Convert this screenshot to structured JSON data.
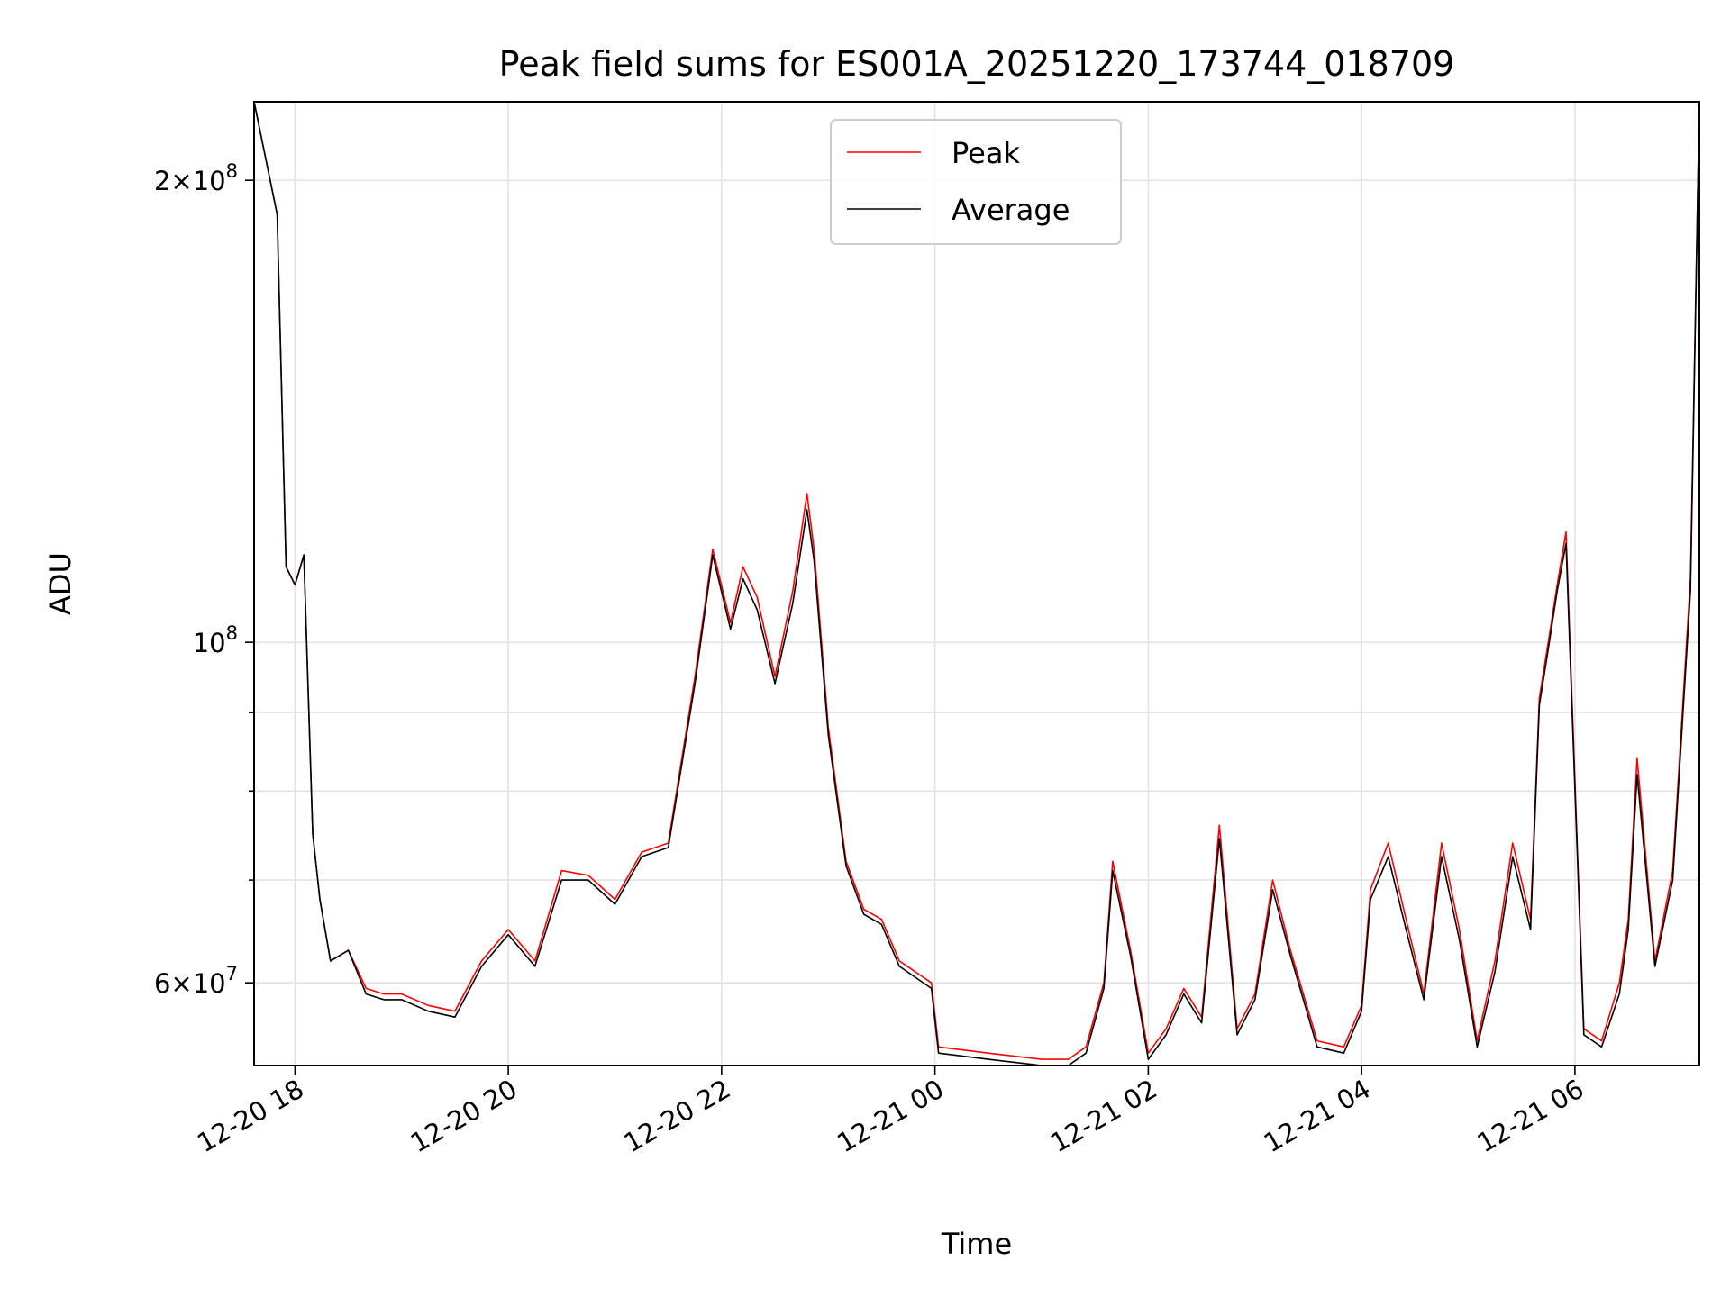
{
  "chart_data": {
    "type": "line",
    "title": "Peak field sums for ES001A_20251220_173744_018709",
    "xlabel": "Time",
    "ylabel": "ADU",
    "yscale": "log",
    "xlim": [
      "2025-12-20 17:37",
      "2025-12-21 07:10"
    ],
    "ylim": [
      53000000,
      225000000
    ],
    "grid": true,
    "legend_position": "top-center",
    "x_ticks": [
      {
        "value": "2025-12-20 18:00",
        "label": "12-20 18"
      },
      {
        "value": "2025-12-20 20:00",
        "label": "12-20 20"
      },
      {
        "value": "2025-12-20 22:00",
        "label": "12-20 22"
      },
      {
        "value": "2025-12-21 00:00",
        "label": "12-21 00"
      },
      {
        "value": "2025-12-21 02:00",
        "label": "12-21 02"
      },
      {
        "value": "2025-12-21 04:00",
        "label": "12-21 04"
      },
      {
        "value": "2025-12-21 06:00",
        "label": "12-21 06"
      }
    ],
    "y_major_ticks": [
      {
        "value": 60000000,
        "base": "6×10",
        "exp": "7"
      },
      {
        "value": 100000000,
        "base": "10",
        "exp": "8"
      },
      {
        "value": 200000000,
        "base": "2×10",
        "exp": "8"
      }
    ],
    "y_minor_ticks": [
      70000000,
      80000000,
      90000000
    ],
    "series": [
      {
        "name": "Peak",
        "color": "#ff0000",
        "x": [
          "2025-12-20 17:37",
          "2025-12-20 17:50",
          "2025-12-20 17:55",
          "2025-12-20 18:00",
          "2025-12-20 18:05",
          "2025-12-20 18:10",
          "2025-12-20 18:14",
          "2025-12-20 18:20",
          "2025-12-20 18:30",
          "2025-12-20 18:40",
          "2025-12-20 18:50",
          "2025-12-20 19:00",
          "2025-12-20 19:15",
          "2025-12-20 19:30",
          "2025-12-20 19:45",
          "2025-12-20 20:00",
          "2025-12-20 20:15",
          "2025-12-20 20:30",
          "2025-12-20 20:45",
          "2025-12-20 21:00",
          "2025-12-20 21:15",
          "2025-12-20 21:30",
          "2025-12-20 21:45",
          "2025-12-20 21:55",
          "2025-12-20 22:05",
          "2025-12-20 22:12",
          "2025-12-20 22:20",
          "2025-12-20 22:30",
          "2025-12-20 22:40",
          "2025-12-20 22:48",
          "2025-12-20 22:52",
          "2025-12-20 23:00",
          "2025-12-20 23:10",
          "2025-12-20 23:20",
          "2025-12-20 23:30",
          "2025-12-20 23:40",
          "2025-12-20 23:58",
          "2025-12-21 00:02",
          "2025-12-21 00:30",
          "2025-12-21 01:00",
          "2025-12-21 01:15",
          "2025-12-21 01:25",
          "2025-12-21 01:35",
          "2025-12-21 01:40",
          "2025-12-21 01:50",
          "2025-12-21 02:00",
          "2025-12-21 02:10",
          "2025-12-21 02:20",
          "2025-12-21 02:30",
          "2025-12-21 02:40",
          "2025-12-21 02:50",
          "2025-12-21 03:00",
          "2025-12-21 03:10",
          "2025-12-21 03:20",
          "2025-12-21 03:35",
          "2025-12-21 03:50",
          "2025-12-21 04:00",
          "2025-12-21 04:05",
          "2025-12-21 04:15",
          "2025-12-21 04:25",
          "2025-12-21 04:35",
          "2025-12-21 04:45",
          "2025-12-21 04:55",
          "2025-12-21 05:05",
          "2025-12-21 05:15",
          "2025-12-21 05:25",
          "2025-12-21 05:35",
          "2025-12-21 05:40",
          "2025-12-21 05:45",
          "2025-12-21 05:50",
          "2025-12-21 05:55",
          "2025-12-21 06:05",
          "2025-12-21 06:15",
          "2025-12-21 06:25",
          "2025-12-21 06:30",
          "2025-12-21 06:35",
          "2025-12-21 06:45",
          "2025-12-21 06:55",
          "2025-12-21 07:05",
          "2025-12-21 07:10"
        ],
        "y": [
          225000000,
          190000000,
          112000000,
          109000000,
          114000000,
          75000000,
          68000000,
          62000000,
          63000000,
          59500000,
          59000000,
          59000000,
          58000000,
          57500000,
          62000000,
          65000000,
          62000000,
          71000000,
          70500000,
          68000000,
          73000000,
          74000000,
          95000000,
          115000000,
          103000000,
          112000000,
          107000000,
          95000000,
          108000000,
          125000000,
          115000000,
          88000000,
          72000000,
          67000000,
          66000000,
          62000000,
          60000000,
          54500000,
          54000000,
          53500000,
          53500000,
          54500000,
          60000000,
          72000000,
          63000000,
          54000000,
          56000000,
          59500000,
          57000000,
          76000000,
          56000000,
          59000000,
          70000000,
          63000000,
          55000000,
          54500000,
          58000000,
          69000000,
          74000000,
          66000000,
          59000000,
          74000000,
          65000000,
          55000000,
          62000000,
          74000000,
          66000000,
          92000000,
          100000000,
          109000000,
          118000000,
          56000000,
          55000000,
          60000000,
          66000000,
          84000000,
          62000000,
          71000000,
          110000000,
          225000000
        ]
      },
      {
        "name": "Average",
        "color": "#000000",
        "x": [
          "2025-12-20 17:37",
          "2025-12-20 17:50",
          "2025-12-20 17:55",
          "2025-12-20 18:00",
          "2025-12-20 18:05",
          "2025-12-20 18:10",
          "2025-12-20 18:14",
          "2025-12-20 18:20",
          "2025-12-20 18:30",
          "2025-12-20 18:40",
          "2025-12-20 18:50",
          "2025-12-20 19:00",
          "2025-12-20 19:15",
          "2025-12-20 19:30",
          "2025-12-20 19:45",
          "2025-12-20 20:00",
          "2025-12-20 20:15",
          "2025-12-20 20:30",
          "2025-12-20 20:45",
          "2025-12-20 21:00",
          "2025-12-20 21:15",
          "2025-12-20 21:30",
          "2025-12-20 21:45",
          "2025-12-20 21:55",
          "2025-12-20 22:05",
          "2025-12-20 22:12",
          "2025-12-20 22:20",
          "2025-12-20 22:30",
          "2025-12-20 22:40",
          "2025-12-20 22:48",
          "2025-12-20 22:52",
          "2025-12-20 23:00",
          "2025-12-20 23:10",
          "2025-12-20 23:20",
          "2025-12-20 23:30",
          "2025-12-20 23:40",
          "2025-12-20 23:58",
          "2025-12-21 00:02",
          "2025-12-21 00:30",
          "2025-12-21 01:00",
          "2025-12-21 01:15",
          "2025-12-21 01:25",
          "2025-12-21 01:35",
          "2025-12-21 01:40",
          "2025-12-21 01:50",
          "2025-12-21 02:00",
          "2025-12-21 02:10",
          "2025-12-21 02:20",
          "2025-12-21 02:30",
          "2025-12-21 02:40",
          "2025-12-21 02:50",
          "2025-12-21 03:00",
          "2025-12-21 03:10",
          "2025-12-21 03:20",
          "2025-12-21 03:35",
          "2025-12-21 03:50",
          "2025-12-21 04:00",
          "2025-12-21 04:05",
          "2025-12-21 04:15",
          "2025-12-21 04:25",
          "2025-12-21 04:35",
          "2025-12-21 04:45",
          "2025-12-21 04:55",
          "2025-12-21 05:05",
          "2025-12-21 05:15",
          "2025-12-21 05:25",
          "2025-12-21 05:35",
          "2025-12-21 05:40",
          "2025-12-21 05:45",
          "2025-12-21 05:50",
          "2025-12-21 05:55",
          "2025-12-21 06:05",
          "2025-12-21 06:15",
          "2025-12-21 06:25",
          "2025-12-21 06:30",
          "2025-12-21 06:35",
          "2025-12-21 06:45",
          "2025-12-21 06:55",
          "2025-12-21 07:05",
          "2025-12-21 07:10"
        ],
        "y": [
          225000000,
          190000000,
          112000000,
          109000000,
          114000000,
          75000000,
          68000000,
          62000000,
          63000000,
          59000000,
          58500000,
          58500000,
          57500000,
          57000000,
          61500000,
          64500000,
          61500000,
          70000000,
          70000000,
          67500000,
          72500000,
          73500000,
          94000000,
          114000000,
          102000000,
          110000000,
          105000000,
          94000000,
          106000000,
          122000000,
          113000000,
          87000000,
          71500000,
          66500000,
          65500000,
          61500000,
          59500000,
          54000000,
          53500000,
          53000000,
          53000000,
          54000000,
          59500000,
          71000000,
          62500000,
          53500000,
          55500000,
          59000000,
          56500000,
          74500000,
          55500000,
          58500000,
          69000000,
          62500000,
          54500000,
          54000000,
          57500000,
          68000000,
          72500000,
          65000000,
          58500000,
          72500000,
          64000000,
          54500000,
          61000000,
          72500000,
          65000000,
          91000000,
          99000000,
          108000000,
          116000000,
          55500000,
          54500000,
          59000000,
          65000000,
          82000000,
          61500000,
          70000000,
          108000000,
          225000000
        ]
      }
    ]
  }
}
